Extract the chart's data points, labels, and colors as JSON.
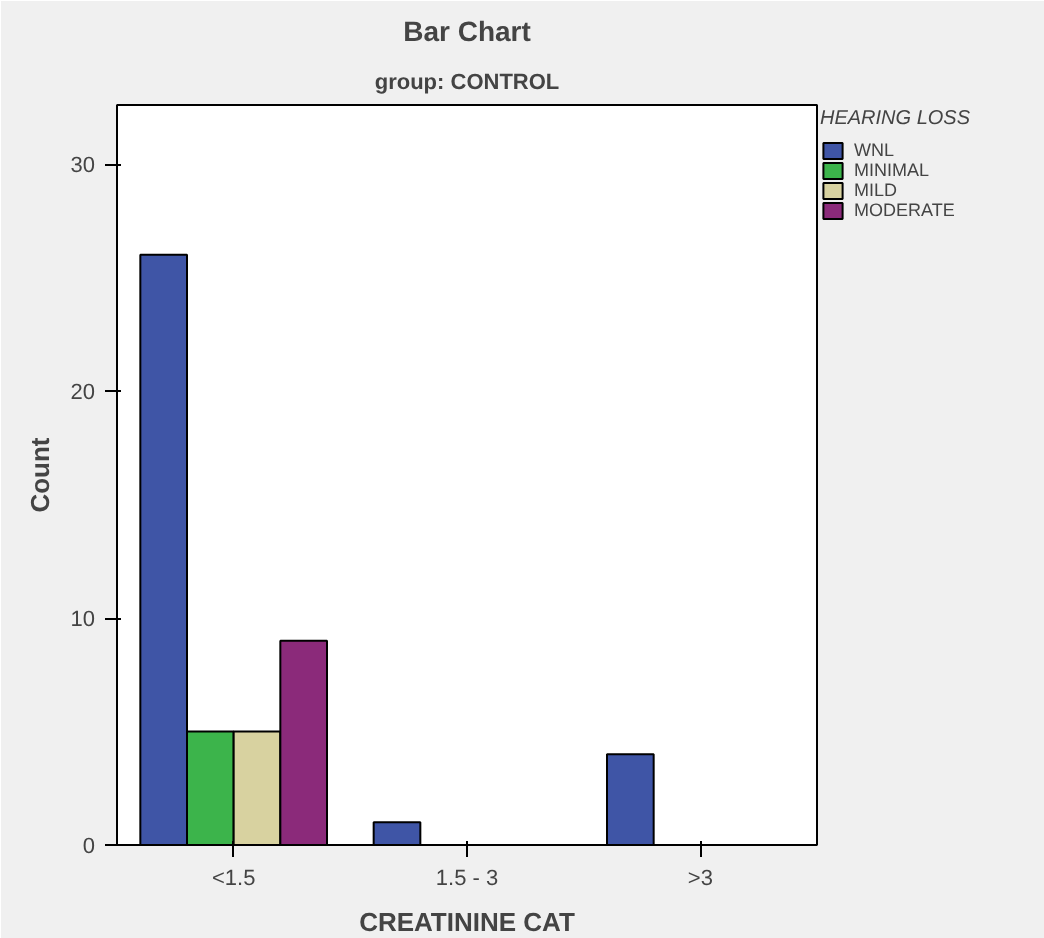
{
  "chart_data": {
    "type": "bar",
    "title": "Bar Chart",
    "subtitle": "group: CONTROL",
    "xlabel": "CREATININE CAT",
    "ylabel": "Count",
    "legend_title": "HEARING LOSS",
    "categories": [
      "<1.5",
      "1.5 - 3",
      ">3"
    ],
    "series": [
      {
        "name": "WNL",
        "color": "#3f55a6",
        "values": [
          26,
          1,
          4
        ]
      },
      {
        "name": "MINIMAL",
        "color": "#3cb44b",
        "values": [
          5,
          null,
          null
        ]
      },
      {
        "name": "MILD",
        "color": "#d8d2a0",
        "values": [
          5,
          null,
          null
        ]
      },
      {
        "name": "MODERATE",
        "color": "#8b2a7a",
        "values": [
          9,
          null,
          null
        ]
      }
    ],
    "ylim": [
      0,
      32.6
    ],
    "yticks": [
      0,
      10,
      20,
      30
    ],
    "grid": false,
    "legend": "right"
  }
}
